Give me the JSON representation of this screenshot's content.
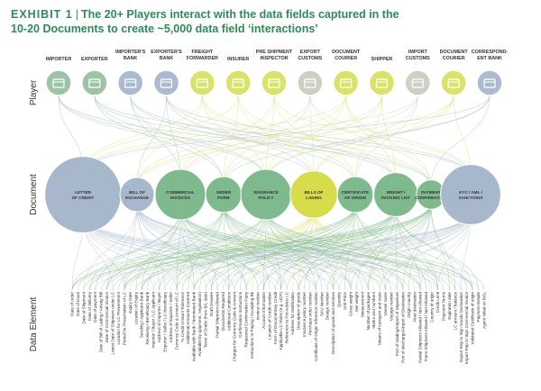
{
  "title": {
    "exhibit": "EXHIBIT 1",
    "line1": "The 20+ Players interact with the data fields captured in the",
    "line2": "10-20 Documents to create ~5,000 data field ‘interactions’"
  },
  "row_labels": {
    "player": "Player",
    "document": "Document",
    "data_element": "Data Element"
  },
  "players": [
    {
      "label": "IMPORTER",
      "icon": "factory-icon",
      "color": "#9cc4a4"
    },
    {
      "label": "EXPORTER",
      "icon": "ship-icon",
      "color": "#9cc4a4"
    },
    {
      "label": "IMPORTER'S\nBANK",
      "icon": "bank-icon",
      "color": "#aabbd0"
    },
    {
      "label": "EXPORTER'S\nBANK",
      "icon": "bank-icon",
      "color": "#aabbd0"
    },
    {
      "label": "FREIGHT\nFORWARDER",
      "icon": "truck-icon",
      "color": "#d9e36a"
    },
    {
      "label": "INSURER",
      "icon": "clipboard-icon",
      "color": "#d9e36a"
    },
    {
      "label": "PRE SHIPMENT\nINSPECTOR",
      "icon": "box-icon",
      "color": "#d9e36a"
    },
    {
      "label": "EXPORT\nCUSTOMS",
      "icon": "search-document-icon",
      "color": "#cfcfc4"
    },
    {
      "label": "DOCUMENT\nCOURIER",
      "icon": "documents-icon",
      "color": "#d9e36a"
    },
    {
      "label": "SHIPPER",
      "icon": "cargo-ship-icon",
      "color": "#d9e36a"
    },
    {
      "label": "IMPORT\nCUSTOMS",
      "icon": "checklist-icon",
      "color": "#cfcfc4"
    },
    {
      "label": "DOCUMENT\nCOURIER",
      "icon": "open-box-icon",
      "color": "#d9e36a"
    },
    {
      "label": "CORRESPOND-\nENT BANK",
      "icon": "bank-icon",
      "color": "#aabbd0"
    }
  ],
  "documents": [
    {
      "label": "LETTER\nOF CREDIT",
      "size": 3.6,
      "color": "#a8b8cc"
    },
    {
      "label": "BILL OF\nEXCHANGE",
      "size": 1,
      "color": "#a8b8cc"
    },
    {
      "label": "COMMERCIAL\nINVOICES",
      "size": 2,
      "color": "#7fb98e"
    },
    {
      "label": "ORDER\nFORM",
      "size": 1.1,
      "color": "#7fb98e"
    },
    {
      "label": "INSURANCE\nPOLICY",
      "size": 2,
      "color": "#7fb98e"
    },
    {
      "label": "BILLS OF\nLADING",
      "size": 1.8,
      "color": "#d6dc4a"
    },
    {
      "label": "CERTIFICATE\nOF ORIGIN",
      "size": 1.1,
      "color": "#7fb98e"
    },
    {
      "label": "WEIGHT /\nPACKING LIST",
      "size": 1.6,
      "color": "#7fb98e"
    },
    {
      "label": "PAYMENT\nCONFIRMATION",
      "size": 0.7,
      "color": "#7fb98e"
    },
    {
      "label": "KYC / AML /\nSANCTIONS",
      "size": 2.6,
      "color": "#a8b8cc"
    }
  ],
  "data_elements": [
    "Date of order",
    "Date of issue",
    "Date of Shipment",
    "Date of delivery",
    "Date of payment",
    "Date of Bill of Lading / Airway Bill",
    "Date of Commercial Invoice",
    "Latest Date of Shipment under LC",
    "Location for LC Presentment",
    "Period for Presentation of LC",
    "Expiry Date",
    "Location of Expiry",
    "Sending / Applicant Bank",
    "Receiving / Beneficiary Bank",
    "Importer / Buyer / LC Applicant",
    "Address of Importer / Buyer",
    "Exporter / Seller / LC Beneficiary",
    "Address of Exporter / Seller",
    "Currency Code & Amount of LC",
    "% Credit Amount Tolerance",
    "Additional Amounts Covered",
    "Available with Bank / Nominated Bank",
    "Available by (payment, negotiation)",
    "Tenor of Drafts (from B/L date)",
    "Draft Drawee",
    "Partial Shipment Allowed",
    "Documents Required",
    "Additional Conditions",
    "Charges for Currency Code & Amount",
    "Confirmation Instructions",
    "Requested Confirmation Party",
    "Instructions to Paying / Accepting Bk",
    "Invoice number",
    "Account Information",
    "Location of Credit number",
    "Form of Documentary Credit",
    "Applicable LC Rules (e.g. UCP)",
    "Reference to Pre-Advice LC",
    "Address for Notification",
    "Description of goods",
    "Insurance policy number",
    "Purchase order number",
    "Certificate of Origin reference number",
    "SKU Number",
    "Design number",
    "Description of goods and services",
    "Quantity",
    "Unit Price",
    "Gross weight",
    "Net weight",
    "Measurement",
    "Number of packages",
    "Marks and numbers",
    "Means of transport and route",
    "Vessel name",
    "Voyage number",
    "Port of loading/Airport of Departure",
    "Port of discharge/Airport of Destination",
    "Origin country",
    "Final destination",
    "Partial Shipment Allowed / Not Allowed",
    "Trans Shipment Allowed / Not Allowed",
    "Country of origin",
    "Credit Limit",
    "Payment Terms",
    "Expiration date",
    "LC amount / balance",
    "Export Rep to Sign Goods Declaration",
    "Export Rep to Sign Commercial Invoice",
    "Validated Certificate of origin",
    "Payment Details",
    "Agent Initial on BOL"
  ]
}
